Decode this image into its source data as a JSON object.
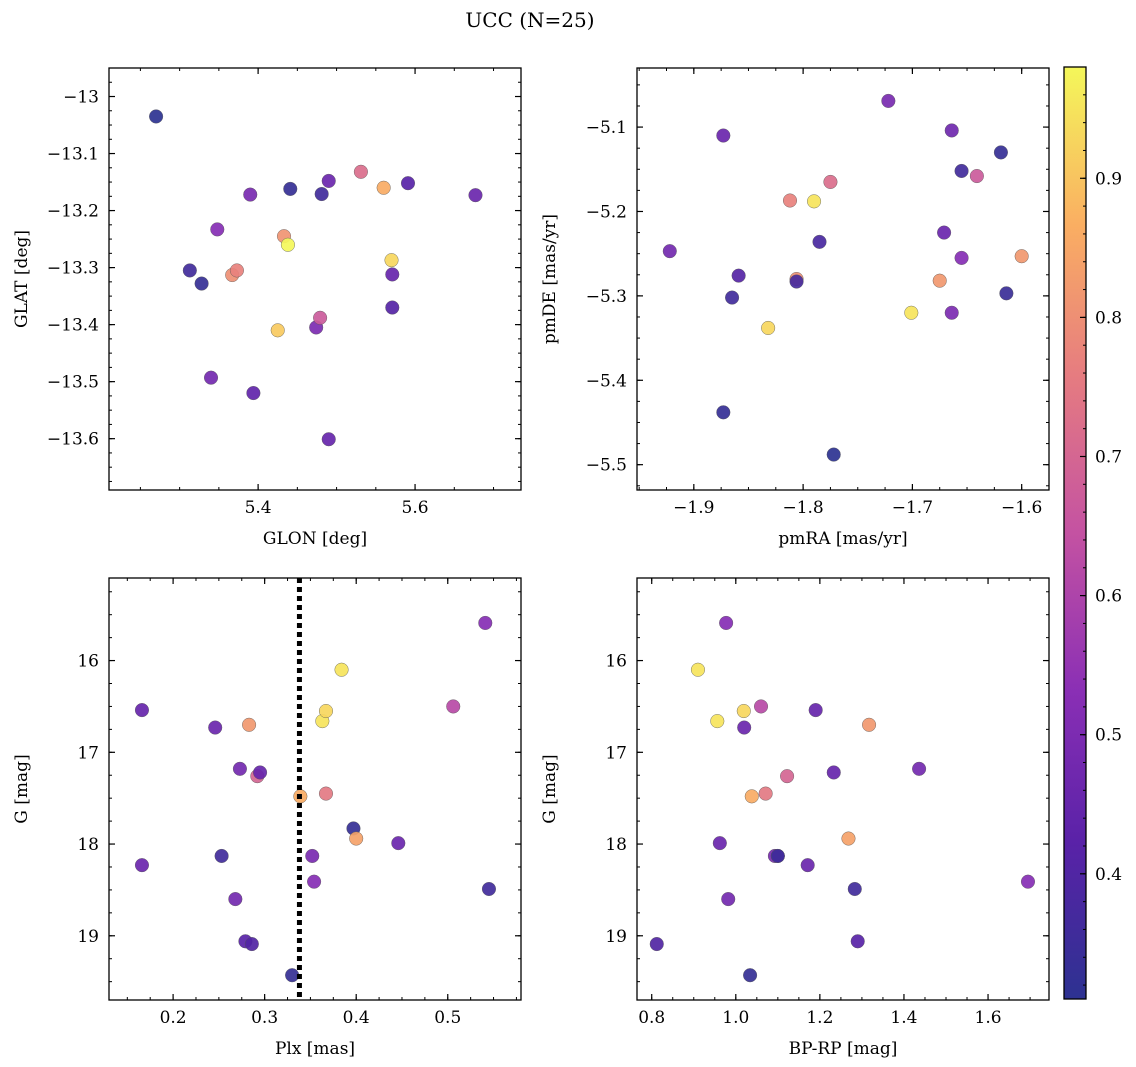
{
  "title": "UCC (N=25)",
  "colorbar": {
    "vmin": 0.31,
    "vmax": 0.98,
    "ticks": [
      0.4,
      0.5,
      0.6,
      0.7,
      0.8,
      0.9
    ]
  },
  "chart_data": [
    {
      "type": "scatter",
      "panel": "top-left",
      "xlabel": "GLON [deg]",
      "ylabel": "GLAT [deg]",
      "xlim": [
        5.21,
        5.735
      ],
      "ylim": [
        -13.69,
        -12.95
      ],
      "y_inverted": false,
      "xticks": [
        5.4,
        5.6
      ],
      "yticks": [
        -13.0,
        -13.1,
        -13.2,
        -13.3,
        -13.4,
        -13.5,
        -13.6
      ],
      "points": [
        {
          "x": 5.27,
          "y": -13.035,
          "c": 0.31
        },
        {
          "x": 5.313,
          "y": -13.305,
          "c": 0.36
        },
        {
          "x": 5.328,
          "y": -13.328,
          "c": 0.33
        },
        {
          "x": 5.34,
          "y": -13.493,
          "c": 0.48
        },
        {
          "x": 5.348,
          "y": -13.233,
          "c": 0.52
        },
        {
          "x": 5.367,
          "y": -13.313,
          "c": 0.8
        },
        {
          "x": 5.373,
          "y": -13.305,
          "c": 0.77
        },
        {
          "x": 5.39,
          "y": -13.172,
          "c": 0.49
        },
        {
          "x": 5.394,
          "y": -13.52,
          "c": 0.44
        },
        {
          "x": 5.425,
          "y": -13.41,
          "c": 0.91
        },
        {
          "x": 5.433,
          "y": -13.245,
          "c": 0.81
        },
        {
          "x": 5.438,
          "y": -13.26,
          "c": 0.98
        },
        {
          "x": 5.441,
          "y": -13.162,
          "c": 0.33
        },
        {
          "x": 5.474,
          "y": -13.405,
          "c": 0.5
        },
        {
          "x": 5.479,
          "y": -13.388,
          "c": 0.67
        },
        {
          "x": 5.481,
          "y": -13.171,
          "c": 0.36
        },
        {
          "x": 5.49,
          "y": -13.148,
          "c": 0.46
        },
        {
          "x": 5.49,
          "y": -13.601,
          "c": 0.45
        },
        {
          "x": 5.531,
          "y": -13.132,
          "c": 0.72
        },
        {
          "x": 5.56,
          "y": -13.16,
          "c": 0.86
        },
        {
          "x": 5.57,
          "y": -13.287,
          "c": 0.93
        },
        {
          "x": 5.571,
          "y": -13.312,
          "c": 0.45
        },
        {
          "x": 5.571,
          "y": -13.37,
          "c": 0.41
        },
        {
          "x": 5.591,
          "y": -13.152,
          "c": 0.42
        },
        {
          "x": 5.677,
          "y": -13.173,
          "c": 0.46
        }
      ]
    },
    {
      "type": "scatter",
      "panel": "top-right",
      "xlabel": "pmRA [mas/yr]",
      "ylabel": "pmDE [mas/yr]",
      "xlim": [
        -1.952,
        -1.575
      ],
      "ylim": [
        -5.53,
        -5.03
      ],
      "y_inverted": false,
      "xticks": [
        -1.9,
        -1.8,
        -1.7,
        -1.6
      ],
      "yticks": [
        -5.1,
        -5.2,
        -5.3,
        -5.4,
        -5.5
      ],
      "points": [
        {
          "x": -1.922,
          "y": -5.247,
          "c": 0.48
        },
        {
          "x": -1.873,
          "y": -5.11,
          "c": 0.46
        },
        {
          "x": -1.873,
          "y": -5.438,
          "c": 0.33
        },
        {
          "x": -1.865,
          "y": -5.302,
          "c": 0.36
        },
        {
          "x": -1.859,
          "y": -5.276,
          "c": 0.41
        },
        {
          "x": -1.832,
          "y": -5.338,
          "c": 0.93
        },
        {
          "x": -1.812,
          "y": -5.187,
          "c": 0.77
        },
        {
          "x": -1.806,
          "y": -5.28,
          "c": 0.8
        },
        {
          "x": -1.806,
          "y": -5.283,
          "c": 0.37
        },
        {
          "x": -1.79,
          "y": -5.188,
          "c": 0.95
        },
        {
          "x": -1.785,
          "y": -5.236,
          "c": 0.38
        },
        {
          "x": -1.775,
          "y": -5.165,
          "c": 0.72
        },
        {
          "x": -1.772,
          "y": -5.488,
          "c": 0.31
        },
        {
          "x": -1.722,
          "y": -5.069,
          "c": 0.49
        },
        {
          "x": -1.701,
          "y": -5.32,
          "c": 0.95
        },
        {
          "x": -1.675,
          "y": -5.282,
          "c": 0.82
        },
        {
          "x": -1.671,
          "y": -5.225,
          "c": 0.46
        },
        {
          "x": -1.664,
          "y": -5.104,
          "c": 0.47
        },
        {
          "x": -1.664,
          "y": -5.32,
          "c": 0.5
        },
        {
          "x": -1.655,
          "y": -5.255,
          "c": 0.52
        },
        {
          "x": -1.655,
          "y": -5.152,
          "c": 0.36
        },
        {
          "x": -1.641,
          "y": -5.158,
          "c": 0.67
        },
        {
          "x": -1.619,
          "y": -5.13,
          "c": 0.33
        },
        {
          "x": -1.614,
          "y": -5.297,
          "c": 0.34
        },
        {
          "x": -1.6,
          "y": -5.253,
          "c": 0.82
        }
      ]
    },
    {
      "type": "scatter",
      "panel": "bottom-left",
      "xlabel": "Plx [mas]",
      "ylabel": "G [mag]",
      "xlim": [
        0.13,
        0.58
      ],
      "ylim": [
        15.1,
        19.7
      ],
      "y_inverted": true,
      "xticks": [
        0.2,
        0.3,
        0.4,
        0.5
      ],
      "yticks": [
        16,
        17,
        18,
        19
      ],
      "vline": 0.338,
      "points": [
        {
          "x": 0.166,
          "y": 16.54,
          "c": 0.45
        },
        {
          "x": 0.166,
          "y": 18.23,
          "c": 0.46
        },
        {
          "x": 0.246,
          "y": 16.73,
          "c": 0.46
        },
        {
          "x": 0.253,
          "y": 18.13,
          "c": 0.36
        },
        {
          "x": 0.268,
          "y": 18.6,
          "c": 0.48
        },
        {
          "x": 0.273,
          "y": 17.18,
          "c": 0.48
        },
        {
          "x": 0.279,
          "y": 19.06,
          "c": 0.42
        },
        {
          "x": 0.283,
          "y": 16.7,
          "c": 0.82
        },
        {
          "x": 0.286,
          "y": 19.09,
          "c": 0.4
        },
        {
          "x": 0.292,
          "y": 17.26,
          "c": 0.7
        },
        {
          "x": 0.295,
          "y": 17.22,
          "c": 0.45
        },
        {
          "x": 0.33,
          "y": 19.43,
          "c": 0.33
        },
        {
          "x": 0.339,
          "y": 17.48,
          "c": 0.86
        },
        {
          "x": 0.352,
          "y": 18.13,
          "c": 0.49
        },
        {
          "x": 0.354,
          "y": 18.41,
          "c": 0.52
        },
        {
          "x": 0.363,
          "y": 16.66,
          "c": 0.95
        },
        {
          "x": 0.367,
          "y": 17.45,
          "c": 0.75
        },
        {
          "x": 0.367,
          "y": 16.55,
          "c": 0.93
        },
        {
          "x": 0.384,
          "y": 16.1,
          "c": 0.95
        },
        {
          "x": 0.397,
          "y": 17.83,
          "c": 0.33
        },
        {
          "x": 0.4,
          "y": 17.94,
          "c": 0.84
        },
        {
          "x": 0.446,
          "y": 17.99,
          "c": 0.46
        },
        {
          "x": 0.506,
          "y": 16.5,
          "c": 0.62
        },
        {
          "x": 0.541,
          "y": 15.59,
          "c": 0.52
        },
        {
          "x": 0.545,
          "y": 18.49,
          "c": 0.36
        }
      ]
    },
    {
      "type": "scatter",
      "panel": "bottom-right",
      "xlabel": "BP-RP [mag]",
      "ylabel": "G [mag]",
      "xlim": [
        0.765,
        1.745
      ],
      "ylim": [
        15.1,
        19.7
      ],
      "y_inverted": true,
      "xticks": [
        0.8,
        1.0,
        1.2,
        1.4,
        1.6
      ],
      "yticks": [
        16,
        17,
        18,
        19
      ],
      "points": [
        {
          "x": 0.812,
          "y": 19.09,
          "c": 0.4
        },
        {
          "x": 0.91,
          "y": 16.1,
          "c": 0.95
        },
        {
          "x": 0.956,
          "y": 16.66,
          "c": 0.95
        },
        {
          "x": 0.962,
          "y": 17.99,
          "c": 0.46
        },
        {
          "x": 0.977,
          "y": 15.59,
          "c": 0.52
        },
        {
          "x": 0.982,
          "y": 18.6,
          "c": 0.48
        },
        {
          "x": 1.019,
          "y": 16.55,
          "c": 0.93
        },
        {
          "x": 1.02,
          "y": 16.73,
          "c": 0.46
        },
        {
          "x": 1.034,
          "y": 19.43,
          "c": 0.33
        },
        {
          "x": 1.038,
          "y": 17.48,
          "c": 0.86
        },
        {
          "x": 1.06,
          "y": 16.5,
          "c": 0.62
        },
        {
          "x": 1.071,
          "y": 17.45,
          "c": 0.75
        },
        {
          "x": 1.093,
          "y": 18.13,
          "c": 0.49
        },
        {
          "x": 1.1,
          "y": 18.13,
          "c": 0.36
        },
        {
          "x": 1.122,
          "y": 17.26,
          "c": 0.7
        },
        {
          "x": 1.171,
          "y": 18.23,
          "c": 0.46
        },
        {
          "x": 1.19,
          "y": 16.54,
          "c": 0.45
        },
        {
          "x": 1.233,
          "y": 17.22,
          "c": 0.45
        },
        {
          "x": 1.268,
          "y": 17.94,
          "c": 0.84
        },
        {
          "x": 1.283,
          "y": 18.49,
          "c": 0.36
        },
        {
          "x": 1.29,
          "y": 19.06,
          "c": 0.42
        },
        {
          "x": 1.317,
          "y": 16.7,
          "c": 0.82
        },
        {
          "x": 1.436,
          "y": 17.18,
          "c": 0.48
        },
        {
          "x": 1.695,
          "y": 18.41,
          "c": 0.52
        },
        {
          "x": 1.1,
          "y": 18.13,
          "c": 0.36
        }
      ]
    }
  ]
}
